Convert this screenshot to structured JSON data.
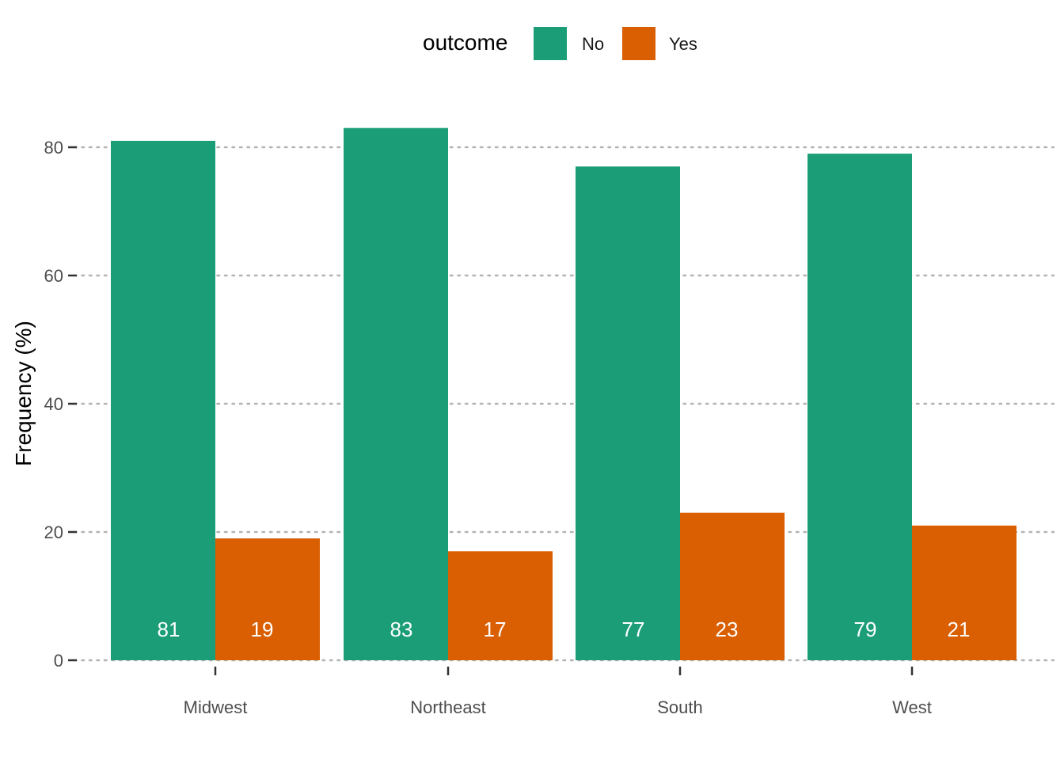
{
  "legend": {
    "title": "outcome",
    "items": [
      {
        "label": "No",
        "color": "#1B9E77"
      },
      {
        "label": "Yes",
        "color": "#D95F02"
      }
    ]
  },
  "chart_data": {
    "type": "bar",
    "categories": [
      "Midwest",
      "Northeast",
      "South",
      "West"
    ],
    "series": [
      {
        "name": "No",
        "color": "#1B9E77",
        "values": [
          81,
          83,
          77,
          79
        ],
        "labels": [
          "81",
          "83",
          "77",
          "79"
        ]
      },
      {
        "name": "Yes",
        "color": "#D95F02",
        "values": [
          19,
          17,
          23,
          21
        ],
        "labels": [
          "19",
          "17",
          "23",
          "21"
        ]
      }
    ],
    "ylabel": "Frequency (%)",
    "xlabel": "",
    "ylim": [
      0,
      87
    ],
    "yticks": [
      0,
      20,
      40,
      60,
      80
    ],
    "grid": "horizontal dotted",
    "legend_position": "top"
  }
}
